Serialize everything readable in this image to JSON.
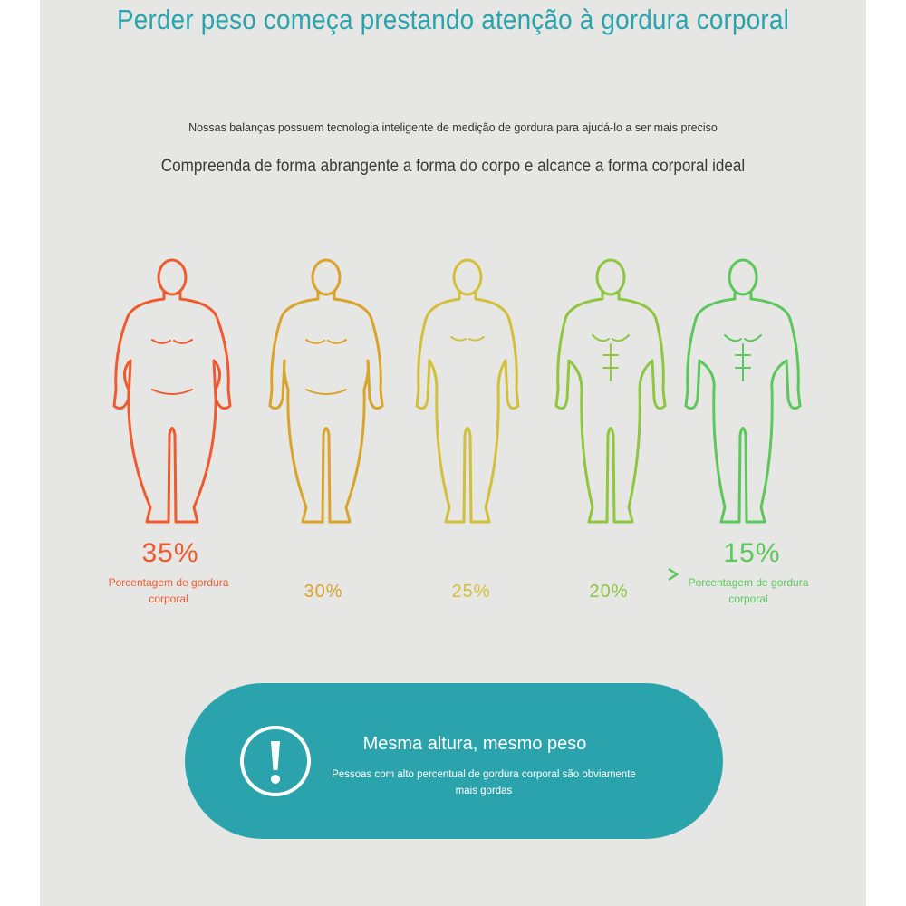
{
  "header": {
    "title": "Perder peso começa prestando atenção à gordura corporal",
    "subtitle_small": "Nossas balanças possuem tecnologia inteligente de medição de gordura para ajudá-lo a ser mais preciso",
    "subtitle_large": "Compreenda de forma abrangente a forma do corpo e alcance a forma corporal ideal"
  },
  "scale": {
    "figures": [
      {
        "color": "#ef5a2e",
        "fat_percent": 35,
        "build": "obese"
      },
      {
        "color": "#d9a42a",
        "fat_percent": 30,
        "build": "heavy"
      },
      {
        "color": "#d2c03a",
        "fat_percent": 25,
        "build": "average"
      },
      {
        "color": "#8fc63f",
        "fat_percent": 20,
        "build": "fit"
      },
      {
        "color": "#5cc85c",
        "fat_percent": 15,
        "build": "athletic"
      }
    ],
    "left": {
      "value": "35%",
      "label": "Porcentagem de gordura corporal",
      "color": "#ef5a2e"
    },
    "right": {
      "value": "15%",
      "label": "Porcentagem de gordura corporal",
      "color": "#5cc85c"
    },
    "middle": [
      {
        "value": "30%",
        "color": "#d9a42a"
      },
      {
        "value": "25%",
        "color": "#d2c03a"
      },
      {
        "value": "20%",
        "color": "#8fc63f"
      }
    ],
    "arrow_colors": [
      "#ef5a2e",
      "#5cc85c"
    ]
  },
  "banner": {
    "icon": "exclamation-circle-icon",
    "title": "Mesma altura, mesmo peso",
    "text": "Pessoas com alto percentual de gordura corporal são obviamente mais gordas",
    "color": "#2aa3ad"
  }
}
